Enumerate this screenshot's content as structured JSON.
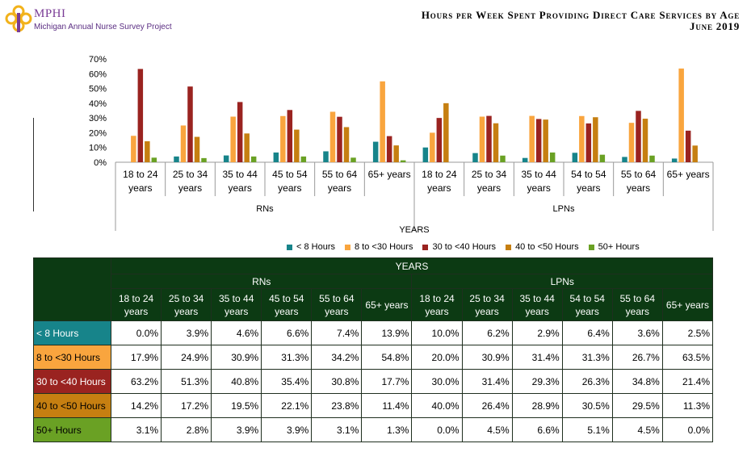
{
  "logo": {
    "name": "MPHI",
    "subtitle": "Michigan Annual Nurse Survey Project"
  },
  "title": {
    "line1": "Hours per Week Spent Providing Direct Care Services by Age",
    "line2": "June 2019"
  },
  "colors": {
    "lt8": "#17848a",
    "8to30": "#f9a53e",
    "30to40": "#9a2320",
    "40to50": "#c67f11",
    "50plus": "#6aa124",
    "table_header": "#0c3a13"
  },
  "chart_data": {
    "type": "bar",
    "xlabel": "YEARS",
    "ylim": [
      0,
      70
    ],
    "yticks": [
      "0%",
      "10%",
      "20%",
      "30%",
      "40%",
      "50%",
      "60%",
      "70%"
    ],
    "groups": [
      {
        "label": "RNs",
        "categories": [
          "18 to 24 years",
          "25 to 34 years",
          "35 to 44 years",
          "45 to 54 years",
          "55 to 64 years",
          "65+ years"
        ]
      },
      {
        "label": "LPNs",
        "categories": [
          "18 to 24 years",
          "25 to 34 years",
          "35 to 44 years",
          "54 to 54 years",
          "55 to 64 years",
          "65+ years"
        ]
      }
    ],
    "series": [
      {
        "name": "< 8 Hours",
        "values": [
          0.0,
          3.9,
          4.6,
          6.6,
          7.4,
          13.9,
          10.0,
          6.2,
          2.9,
          6.4,
          3.6,
          2.5
        ]
      },
      {
        "name": "8 to <30 Hours",
        "values": [
          17.9,
          24.9,
          30.9,
          31.3,
          34.2,
          54.8,
          20.0,
          30.9,
          31.4,
          31.3,
          26.7,
          63.5
        ]
      },
      {
        "name": "30 to <40 Hours",
        "values": [
          63.2,
          51.3,
          40.8,
          35.4,
          30.8,
          17.7,
          30.0,
          31.4,
          29.3,
          26.3,
          34.8,
          21.4
        ]
      },
      {
        "name": "40 to <50 Hours",
        "values": [
          14.2,
          17.2,
          19.5,
          22.1,
          23.8,
          11.4,
          40.0,
          26.4,
          28.9,
          30.5,
          29.5,
          11.3
        ]
      },
      {
        "name": "50+ Hours",
        "values": [
          3.1,
          2.8,
          3.9,
          3.9,
          3.1,
          1.3,
          0.0,
          4.5,
          6.6,
          5.1,
          4.5,
          0.0
        ]
      }
    ]
  },
  "table": {
    "header": "YEARS",
    "groups": [
      "RNs",
      "LPNs"
    ],
    "categories": [
      [
        "18 to 24",
        "years"
      ],
      [
        "25 to 34",
        "years"
      ],
      [
        "35 to 44",
        "years"
      ],
      [
        "45 to 54",
        "years"
      ],
      [
        "55 to 64",
        "years"
      ],
      [
        "65+ years"
      ],
      [
        "18 to 24",
        "years"
      ],
      [
        "25 to 34",
        "years"
      ],
      [
        "35 to 44",
        "years"
      ],
      [
        "54 to 54",
        "years"
      ],
      [
        "55 to 64",
        "years"
      ],
      [
        "65+ years"
      ]
    ],
    "rows": [
      {
        "label": "< 8 Hours",
        "values": [
          "0.0%",
          "3.9%",
          "4.6%",
          "6.6%",
          "7.4%",
          "13.9%",
          "10.0%",
          "6.2%",
          "2.9%",
          "6.4%",
          "3.6%",
          "2.5%"
        ]
      },
      {
        "label": "8 to <30 Hours",
        "values": [
          "17.9%",
          "24.9%",
          "30.9%",
          "31.3%",
          "34.2%",
          "54.8%",
          "20.0%",
          "30.9%",
          "31.4%",
          "31.3%",
          "26.7%",
          "63.5%"
        ]
      },
      {
        "label": "30 to <40 Hours",
        "values": [
          "63.2%",
          "51.3%",
          "40.8%",
          "35.4%",
          "30.8%",
          "17.7%",
          "30.0%",
          "31.4%",
          "29.3%",
          "26.3%",
          "34.8%",
          "21.4%"
        ]
      },
      {
        "label": "40 to <50 Hours",
        "values": [
          "14.2%",
          "17.2%",
          "19.5%",
          "22.1%",
          "23.8%",
          "11.4%",
          "40.0%",
          "26.4%",
          "28.9%",
          "30.5%",
          "29.5%",
          "11.3%"
        ]
      },
      {
        "label": "50+ Hours",
        "values": [
          "3.1%",
          "2.8%",
          "3.9%",
          "3.9%",
          "3.1%",
          "1.3%",
          "0.0%",
          "4.5%",
          "6.6%",
          "5.1%",
          "4.5%",
          "0.0%"
        ]
      }
    ]
  }
}
